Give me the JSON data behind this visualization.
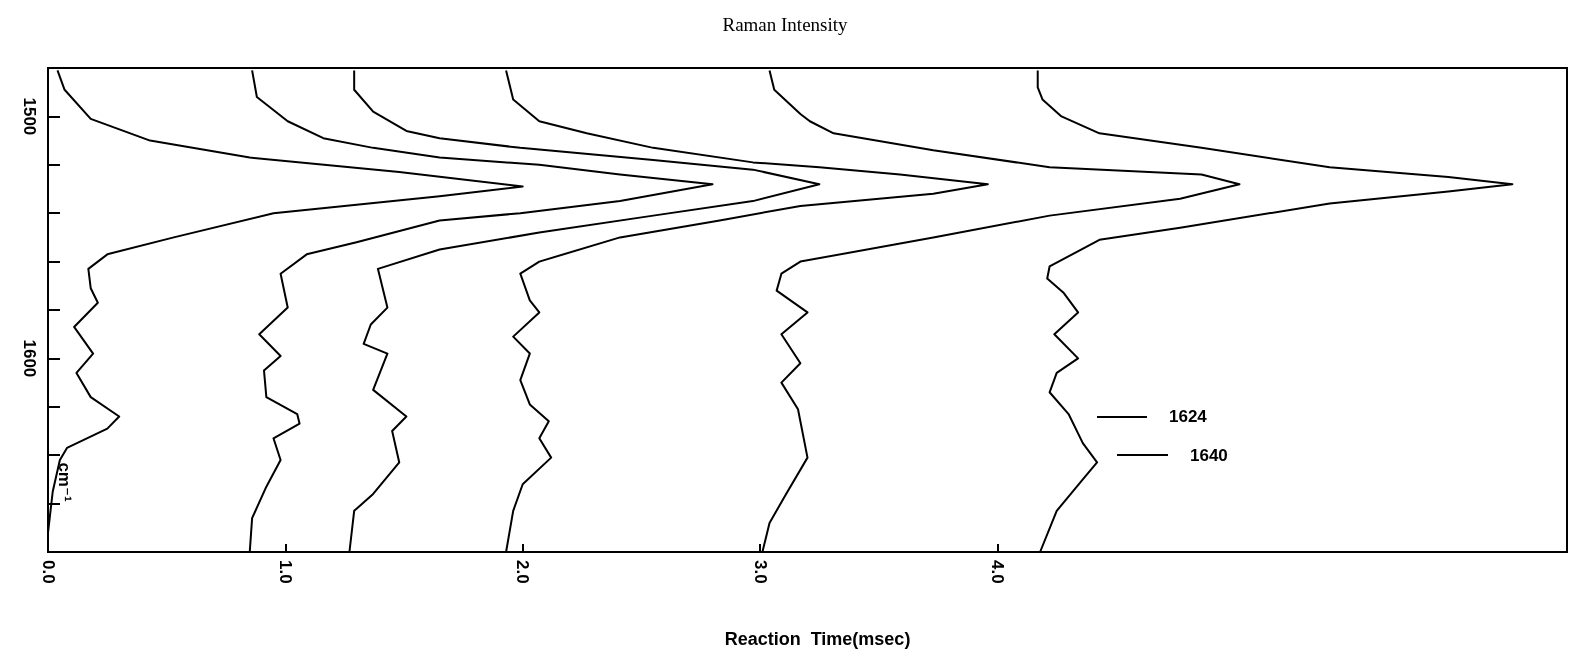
{
  "chart_data": {
    "type": "line",
    "title": "Raman Intensity",
    "xlabel": "Reaction  Time(msec)",
    "ylabel": "cm⁻¹",
    "xlim": [
      0,
      6.4
    ],
    "xticks": [
      {
        "value": 0,
        "label": "0.0"
      },
      {
        "value": 1,
        "label": "1.0"
      },
      {
        "value": 2,
        "label": "2.0"
      },
      {
        "value": 3,
        "label": "3.0"
      },
      {
        "value": 4,
        "label": "4.0"
      }
    ],
    "ylim": [
      1680,
      1480
    ],
    "yticks": [
      1500,
      {
        "value": 1520,
        "label": null
      },
      {
        "value": 1540,
        "label": null
      },
      {
        "value": 1560,
        "label": null
      },
      {
        "value": 1580,
        "label": null
      },
      1600,
      {
        "value": 1620,
        "label": null
      },
      {
        "value": 1640,
        "label": null
      },
      {
        "value": 1660,
        "label": null
      }
    ],
    "marker": "none",
    "line_style": "solid",
    "series": [
      {
        "color": "#000000",
        "x": [
          0.04,
          0.07,
          0.18,
          0.43,
          0.85,
          1.48,
          2.0,
          1.65,
          0.95,
          0.53,
          0.25,
          0.17,
          0.18,
          0.21,
          0.11,
          0.19,
          0.12,
          0.18,
          0.3,
          0.25,
          0.08,
          0.05,
          0.02,
          0.0,
          0.0
        ],
        "values": [
          1481,
          1489,
          1501,
          1510,
          1517,
          1523,
          1529,
          1533,
          1540,
          1550,
          1557,
          1563,
          1571,
          1577,
          1587,
          1598,
          1606,
          1616,
          1624,
          1629,
          1637,
          1642,
          1655,
          1672,
          1680
        ]
      },
      {
        "color": "#000000",
        "x": [
          0.86,
          0.88,
          1.01,
          1.16,
          1.37,
          1.65,
          2.07,
          2.41,
          2.8,
          2.41,
          1.99,
          1.65,
          1.3,
          1.09,
          0.98,
          1.01,
          0.89,
          0.98,
          0.91,
          0.92,
          1.05,
          1.06,
          0.95,
          0.98,
          0.92,
          0.86,
          0.85
        ],
        "values": [
          1481,
          1492,
          1502,
          1509,
          1513,
          1517,
          1520,
          1524,
          1528,
          1535,
          1540,
          1543,
          1552,
          1557,
          1565,
          1579,
          1590,
          1599,
          1605,
          1616,
          1623,
          1627,
          1633,
          1642,
          1653,
          1666,
          1680
        ]
      },
      {
        "color": "#000000",
        "x": [
          1.29,
          1.29,
          1.37,
          1.51,
          1.65,
          1.99,
          2.55,
          2.97,
          3.25,
          2.97,
          2.55,
          2.07,
          1.65,
          1.39,
          1.43,
          1.36,
          1.33,
          1.43,
          1.37,
          1.51,
          1.45,
          1.48,
          1.37,
          1.29,
          1.27
        ],
        "values": [
          1481,
          1489,
          1498,
          1506,
          1509,
          1513,
          1518,
          1522,
          1528,
          1535,
          1541,
          1548,
          1555,
          1563,
          1579,
          1586,
          1594,
          1598,
          1613,
          1624,
          1630,
          1643,
          1656,
          1663,
          1680
        ]
      },
      {
        "color": "#000000",
        "x": [
          1.93,
          1.96,
          2.07,
          2.27,
          2.55,
          2.97,
          3.25,
          3.59,
          3.96,
          3.73,
          3.17,
          2.83,
          2.41,
          2.07,
          1.99,
          2.03,
          2.07,
          1.96,
          2.03,
          1.99,
          2.03,
          2.11,
          2.07,
          2.12,
          2.0,
          1.96,
          1.93
        ],
        "values": [
          1481,
          1493,
          1502,
          1507,
          1513,
          1519,
          1521,
          1524,
          1528,
          1532,
          1537,
          1543,
          1550,
          1560,
          1565,
          1576,
          1581,
          1591,
          1598,
          1609,
          1619,
          1626,
          1633,
          1641,
          1652,
          1663,
          1680
        ]
      },
      {
        "color": "#000000",
        "x": [
          3.04,
          3.06,
          3.17,
          3.21,
          3.31,
          3.73,
          4.22,
          4.86,
          5.02,
          4.77,
          4.22,
          3.73,
          3.17,
          3.09,
          3.07,
          3.2,
          3.09,
          3.17,
          3.09,
          3.16,
          3.2,
          3.11,
          3.04,
          3.01
        ],
        "values": [
          1481,
          1489,
          1499,
          1502,
          1507,
          1514,
          1521,
          1524,
          1528,
          1534,
          1541,
          1550,
          1560,
          1565,
          1572,
          1581,
          1590,
          1602,
          1610,
          1621,
          1641,
          1656,
          1668,
          1680
        ]
      },
      {
        "color": "#000000",
        "x": [
          4.17,
          4.17,
          4.19,
          4.27,
          4.43,
          4.86,
          5.4,
          5.9,
          6.17,
          5.9,
          5.4,
          4.77,
          4.43,
          4.22,
          4.21,
          4.28,
          4.34,
          4.24,
          4.34,
          4.25,
          4.22,
          4.3,
          4.36,
          4.42,
          4.36,
          4.25,
          4.18
        ],
        "values": [
          1481,
          1488,
          1493,
          1500,
          1507,
          1513,
          1521,
          1525,
          1528,
          1531,
          1536,
          1546,
          1551,
          1562,
          1567,
          1573,
          1581,
          1590,
          1600,
          1606,
          1614,
          1623,
          1635,
          1643,
          1650,
          1663,
          1680
        ]
      }
    ],
    "ref_lines": [
      {
        "axis": "y",
        "value": 1624,
        "label": "1624"
      },
      {
        "axis": "y",
        "value": 1640,
        "label": "1640"
      }
    ]
  }
}
